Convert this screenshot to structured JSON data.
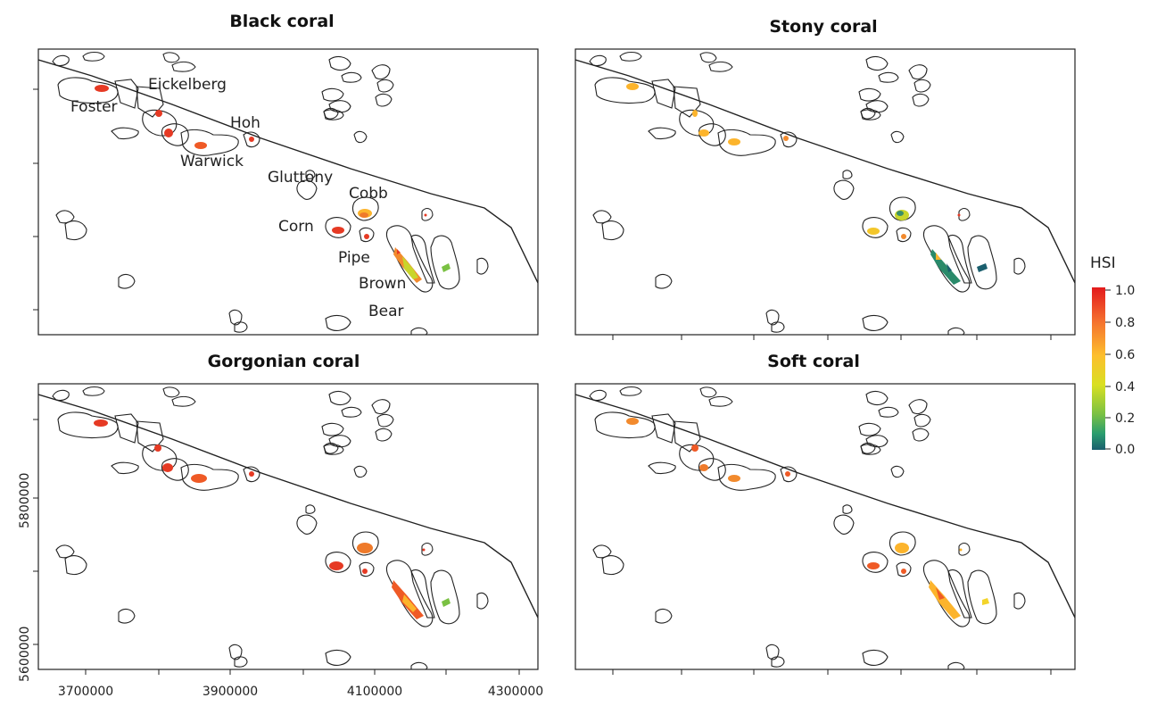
{
  "panels": [
    {
      "id": "black",
      "title": "Black coral",
      "mode": "black",
      "labels": [
        {
          "text": "Foster"
        },
        {
          "text": "Eickelberg"
        },
        {
          "text": "Hoh"
        },
        {
          "text": "Warwick"
        },
        {
          "text": "Gluttony"
        },
        {
          "text": "Cobb"
        },
        {
          "text": "Corn"
        },
        {
          "text": "Pipe"
        },
        {
          "text": "Brown"
        },
        {
          "text": "Bear"
        }
      ]
    },
    {
      "id": "stony",
      "title": "Stony coral",
      "mode": "stony",
      "labels": []
    },
    {
      "id": "gorgonian",
      "title": "Gorgonian coral",
      "mode": "gorgonian",
      "labels": []
    },
    {
      "id": "soft",
      "title": "Soft coral",
      "mode": "soft",
      "labels": []
    }
  ],
  "x_axis": {
    "ticks": [
      "3700000",
      "3900000",
      "4100000",
      "4300000"
    ]
  },
  "y_axis": {
    "ticks": [
      "5600000",
      "5800000"
    ]
  },
  "legend": {
    "title": "HSI",
    "ticks": [
      "1.0",
      "0.8",
      "0.6",
      "0.4",
      "0.2",
      "0.0"
    ],
    "colors": [
      "#e31a1c",
      "#f46d2e",
      "#fdbf2d",
      "#d9e021",
      "#7ac143",
      "#2a9d6f",
      "#1b5f6e"
    ]
  }
}
